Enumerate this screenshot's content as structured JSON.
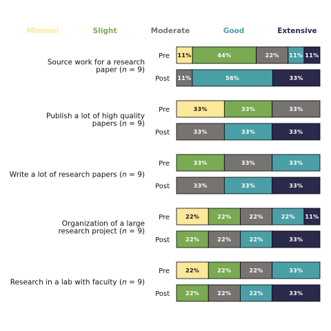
{
  "chart_data": {
    "type": "bar",
    "orientation": "horizontal",
    "stacked": true,
    "normalized_percent": true,
    "levels": [
      {
        "name": "Minimal",
        "color": "#FBE89A"
      },
      {
        "name": "Slight",
        "color": "#7AAA51"
      },
      {
        "name": "Moderate",
        "color": "#777371"
      },
      {
        "name": "Good",
        "color": "#4A9FA6"
      },
      {
        "name": "Extensive",
        "color": "#2B2A4C"
      }
    ],
    "legend_placement": "top",
    "items": [
      {
        "label_line1": "Source work for a research",
        "label_line2": "paper (",
        "n_text": "n",
        "n_suffix": " = 9)",
        "rows": [
          {
            "phase": "Pre",
            "values": [
              11,
              44,
              22,
              11,
              11
            ],
            "labels": [
              "11%",
              "44%",
              "22%",
              "11%",
              "11%"
            ]
          },
          {
            "phase": "Post",
            "values": [
              0,
              0,
              11,
              56,
              33
            ],
            "labels": [
              "",
              "",
              "11%",
              "56%",
              "33%"
            ]
          }
        ]
      },
      {
        "label_line1": "Publish a lot of high quality",
        "label_line2": "papers (",
        "n_text": "n",
        "n_suffix": " = 9)",
        "rows": [
          {
            "phase": "Pre",
            "values": [
              33,
              33,
              33,
              0,
              0
            ],
            "labels": [
              "33%",
              "33%",
              "33%",
              "",
              ""
            ]
          },
          {
            "phase": "Post",
            "values": [
              0,
              0,
              33,
              33,
              33
            ],
            "labels": [
              "",
              "",
              "33%",
              "33%",
              "33%"
            ]
          }
        ]
      },
      {
        "label_line1": "",
        "label_line2": "Write a lot of research papers (",
        "n_text": "n",
        "n_suffix": " = 9)",
        "rows": [
          {
            "phase": "Pre",
            "values": [
              0,
              33,
              33,
              33,
              0
            ],
            "labels": [
              "",
              "33%",
              "33%",
              "33%",
              ""
            ]
          },
          {
            "phase": "Post",
            "values": [
              0,
              0,
              33,
              33,
              33
            ],
            "labels": [
              "",
              "",
              "33%",
              "33%",
              "33%"
            ]
          }
        ]
      },
      {
        "label_line1": "Organization of a large",
        "label_line2": "research project (",
        "n_text": "n",
        "n_suffix": " = 9)",
        "rows": [
          {
            "phase": "Pre",
            "values": [
              22,
              22,
              22,
              22,
              11
            ],
            "labels": [
              "22%",
              "22%",
              "22%",
              "22%",
              "11%"
            ]
          },
          {
            "phase": "Post",
            "values": [
              0,
              22,
              22,
              22,
              33
            ],
            "labels": [
              "",
              "22%",
              "22%",
              "22%",
              "33%"
            ]
          }
        ]
      },
      {
        "label_line1": "",
        "label_line2": "Research in a lab with faculty (",
        "n_text": "n",
        "n_suffix": " = 9)",
        "rows": [
          {
            "phase": "Pre",
            "values": [
              22,
              22,
              22,
              33,
              0
            ],
            "labels": [
              "22%",
              "22%",
              "22%",
              "33%",
              ""
            ]
          },
          {
            "phase": "Post",
            "values": [
              0,
              22,
              22,
              22,
              33
            ],
            "labels": [
              "",
              "22%",
              "22%",
              "22%",
              "33%"
            ]
          }
        ]
      }
    ]
  }
}
